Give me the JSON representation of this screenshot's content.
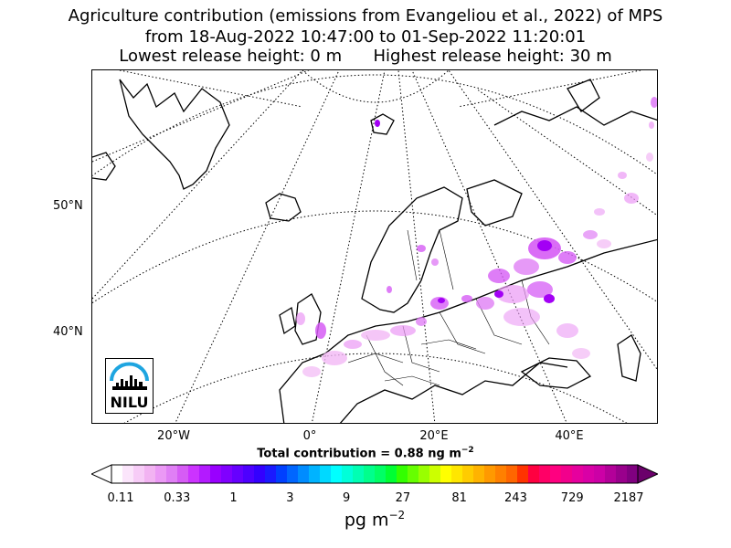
{
  "title": {
    "line1": "Agriculture contribution (emissions from Evangeliou et al., 2022) of MPS",
    "line2": "from 18-Aug-2022 10:47:00 to 01-Sep-2022 11:20:01",
    "line3": "Lowest release height: 0 m      Highest release height: 30 m"
  },
  "map": {
    "lat_labels": [
      "50°N",
      "40°N"
    ],
    "lon_labels": [
      "20°W",
      "0°",
      "20°E",
      "40°E"
    ],
    "colors": {
      "land_outline": "#000000",
      "graticule": "#000000",
      "plume_light": "#f2b8f5",
      "plume_mid": "#d65cf5",
      "plume_dark": "#a300f5"
    }
  },
  "total": {
    "prefix": "Total contribution = 0.88 ng m",
    "exponent": "−2"
  },
  "colorbar": {
    "tick_labels": [
      "0.11",
      "0.33",
      "1",
      "3",
      "9",
      "27",
      "81",
      "243",
      "729",
      "2187"
    ],
    "colors": [
      "#ffffff",
      "#fbe5fb",
      "#f7ccf7",
      "#f2b3f2",
      "#eb99f5",
      "#e07ff5",
      "#d65cf5",
      "#cc33ff",
      "#b31aff",
      "#9900ff",
      "#8000ff",
      "#6600ff",
      "#4d00ff",
      "#3300ff",
      "#1a1aff",
      "#0040ff",
      "#0066ff",
      "#008cff",
      "#00b3ff",
      "#00d9ff",
      "#00ffff",
      "#00ffd9",
      "#00ffb3",
      "#00ff8c",
      "#00ff66",
      "#00ff33",
      "#33ff00",
      "#66ff00",
      "#99ff00",
      "#ccff00",
      "#ffff00",
      "#ffe600",
      "#ffcc00",
      "#ffb300",
      "#ff9900",
      "#ff8000",
      "#ff6600",
      "#ff3300",
      "#ff0040",
      "#ff0066",
      "#ff0080",
      "#f2008c",
      "#e6009e",
      "#d900a6",
      "#cc00a6",
      "#b30099",
      "#99008c",
      "#800080"
    ],
    "under_color": "#ffffff",
    "over_color": "#6b006b"
  },
  "unit": {
    "base": "pg m",
    "exponent": "−2"
  },
  "logo": {
    "text": "NILU",
    "color": "#1ea5e0"
  }
}
